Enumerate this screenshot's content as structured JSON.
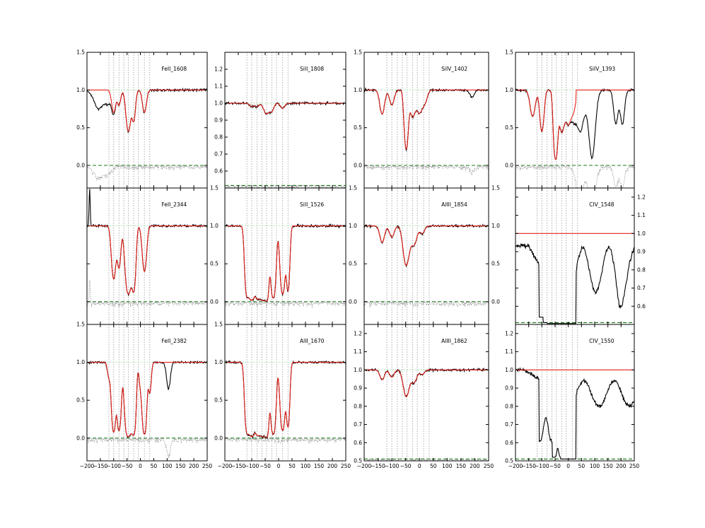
{
  "chart_data": {
    "type": "line",
    "xlim": [
      -200,
      250
    ],
    "x_ticks": [
      -200,
      -150,
      -100,
      -50,
      0,
      50,
      100,
      150,
      200,
      250
    ],
    "x_tick_labels": [
      "−200",
      "−150",
      "−100",
      "−50",
      "0",
      "50",
      "100",
      "150",
      "200",
      "250"
    ],
    "component_velocities": [
      -118,
      -100,
      -80,
      -62,
      -45,
      -25,
      -8,
      15,
      35
    ],
    "colors": {
      "flux": "#000000",
      "model": "#e8231c",
      "continuum": "#9fdb9f",
      "zero": "#1a7a1a",
      "residual": "#999999"
    },
    "panels": [
      {
        "label": "FeII_1608",
        "ylim": [
          -0.3,
          1.5
        ],
        "y_ticks": [
          0.0,
          0.5,
          1.0,
          1.5
        ],
        "y_tick_labels": [
          "0.0",
          "0.5",
          "1.0",
          "1.5"
        ],
        "axis_side": "left",
        "show_x": false,
        "zero": 0.0,
        "continuum": 1.0,
        "model_extent": [
          -130,
          60
        ],
        "lines": [
          [
            -100,
            0.3,
            7
          ],
          [
            -80,
            0.2,
            6
          ],
          [
            -45,
            0.55,
            8
          ],
          [
            -25,
            0.4,
            6
          ],
          [
            15,
            0.3,
            7
          ]
        ],
        "extra": [
          [
            -155,
            0.25,
            18
          ],
          [
            -120,
            0.15,
            10
          ]
        ]
      },
      {
        "label": "SiII_1808",
        "ylim": [
          0.5,
          1.3
        ],
        "y_ticks": [
          0.6,
          0.7,
          0.8,
          0.9,
          1.0,
          1.1,
          1.2
        ],
        "y_tick_labels": [
          "0.6",
          "0.7",
          "0.8",
          "0.9",
          "1.0",
          "1.1",
          "1.2"
        ],
        "axis_side": "left",
        "show_x": false,
        "zero": 0.515,
        "continuum": 1.0,
        "model_extent": null,
        "lines": [
          [
            -100,
            0.04,
            8
          ],
          [
            -80,
            0.04,
            7
          ],
          [
            -45,
            0.13,
            10
          ],
          [
            -25,
            0.09,
            7
          ],
          [
            15,
            0.06,
            8
          ]
        ],
        "extra": []
      },
      {
        "label": "SiIV_1402",
        "ylim": [
          -0.3,
          1.5
        ],
        "y_ticks": [
          0.0,
          0.5,
          1.0,
          1.5
        ],
        "y_tick_labels": [
          "0.0",
          "0.5",
          "1.0",
          "1.5"
        ],
        "axis_side": "left",
        "show_x": false,
        "zero": 0.0,
        "continuum": 1.0,
        "model_extent": null,
        "lines": [
          [
            -135,
            0.32,
            8
          ],
          [
            -100,
            0.2,
            8
          ],
          [
            -48,
            0.78,
            6
          ],
          [
            -25,
            0.35,
            9
          ],
          [
            0,
            0.3,
            10
          ],
          [
            20,
            0.15,
            8
          ]
        ],
        "extra": [
          [
            190,
            0.1,
            8
          ]
        ]
      },
      {
        "label": "SiIV_1393",
        "ylim": [
          -0.3,
          1.5
        ],
        "y_ticks": [
          0.0,
          0.5,
          1.0,
          1.5
        ],
        "y_tick_labels": [
          "0.0",
          "0.5",
          "1.0",
          "1.5"
        ],
        "axis_side": "left",
        "show_x": false,
        "zero": 0.0,
        "continuum": 1.0,
        "model_extent": [
          -200,
          30
        ],
        "lines": [
          [
            -135,
            0.35,
            9
          ],
          [
            -100,
            0.55,
            7
          ],
          [
            -48,
            0.92,
            6
          ],
          [
            -25,
            0.55,
            9
          ],
          [
            0,
            0.45,
            10
          ],
          [
            20,
            0.25,
            8
          ]
        ],
        "extra": [
          [
            45,
            0.55,
            15
          ],
          [
            90,
            0.9,
            12
          ],
          [
            180,
            0.45,
            8
          ],
          [
            205,
            0.45,
            8
          ]
        ]
      },
      {
        "label": "FeII_2344",
        "ylim": [
          -0.3,
          1.5
        ],
        "y_ticks": [
          0.0,
          0.5,
          1.0,
          1.5
        ],
        "y_tick_labels": [
          "0.0",
          "0.5",
          "1.0",
          "1.5"
        ],
        "axis_side": "right",
        "show_x": false,
        "zero": 0.0,
        "continuum": 1.0,
        "model_extent": null,
        "lines": [
          [
            -100,
            0.7,
            7
          ],
          [
            -80,
            0.55,
            6
          ],
          [
            -45,
            0.9,
            9
          ],
          [
            -25,
            0.85,
            6
          ],
          [
            15,
            0.6,
            7
          ]
        ],
        "extra": [
          [
            -190,
            -0.5,
            2
          ]
        ]
      },
      {
        "label": "SiII_1526",
        "ylim": [
          -0.3,
          1.5
        ],
        "y_ticks": [
          0.0,
          0.5,
          1.0,
          1.5
        ],
        "y_tick_labels": [
          "0.0",
          "0.5",
          "1.0",
          "1.5"
        ],
        "axis_side": "right",
        "show_x": false,
        "zero": 0.0,
        "continuum": 1.0,
        "model_extent": null,
        "lines": [
          [
            -118,
            0.9,
            6
          ],
          [
            -100,
            0.98,
            9
          ],
          [
            -80,
            0.9,
            6
          ],
          [
            -62,
            0.98,
            10
          ],
          [
            -45,
            0.98,
            6
          ],
          [
            -20,
            0.95,
            7
          ],
          [
            15,
            0.9,
            7
          ],
          [
            35,
            0.85,
            5
          ]
        ],
        "extra": []
      },
      {
        "label": "AlIII_1854",
        "ylim": [
          -0.3,
          1.5
        ],
        "y_ticks": [
          0.0,
          0.5,
          1.0,
          1.5
        ],
        "y_tick_labels": [
          "0.0",
          "0.5",
          "1.0",
          "1.5"
        ],
        "axis_side": "right",
        "show_x": false,
        "zero": 0.0,
        "continuum": 1.0,
        "model_extent": null,
        "lines": [
          [
            -135,
            0.22,
            8
          ],
          [
            -100,
            0.15,
            8
          ],
          [
            -48,
            0.52,
            10
          ],
          [
            -20,
            0.25,
            10
          ],
          [
            10,
            0.1,
            8
          ]
        ],
        "extra": []
      },
      {
        "label": "CIV_1548",
        "ylim": [
          0.5,
          1.25
        ],
        "y_ticks": [
          0.6,
          0.7,
          0.8,
          0.9,
          1.0,
          1.1,
          1.2
        ],
        "y_tick_labels": [
          "0.6",
          "0.7",
          "0.8",
          "0.9",
          "1.0",
          "1.1",
          "1.2"
        ],
        "axis_side": "right",
        "show_x": false,
        "zero": 0.51,
        "continuum": 1.0,
        "model_extent": null,
        "lines": [],
        "extra": []
      },
      {
        "label": "FeII_2382",
        "ylim": [
          -0.3,
          1.5
        ],
        "y_ticks": [
          0.0,
          0.5,
          1.0,
          1.5
        ],
        "y_tick_labels": [
          "0.0",
          "0.5",
          "1.0",
          "1.5"
        ],
        "axis_side": "left",
        "show_x": true,
        "zero": 0.0,
        "continuum": 1.0,
        "model_extent": null,
        "lines": [
          [
            -118,
            0.2,
            5
          ],
          [
            -100,
            0.92,
            6
          ],
          [
            -80,
            0.9,
            6
          ],
          [
            -45,
            0.98,
            9
          ],
          [
            -25,
            0.95,
            6
          ],
          [
            0,
            0.3,
            5
          ],
          [
            15,
            0.95,
            6
          ],
          [
            35,
            0.4,
            5
          ]
        ],
        "extra": [
          [
            105,
            0.35,
            7
          ]
        ]
      },
      {
        "label": "AlII_1670",
        "ylim": [
          -0.3,
          1.5
        ],
        "y_ticks": [
          0.0,
          0.5,
          1.0,
          1.5
        ],
        "y_tick_labels": [
          "0.0",
          "0.5",
          "1.0",
          "1.5"
        ],
        "axis_side": "left",
        "show_x": true,
        "zero": 0.0,
        "continuum": 1.0,
        "model_extent": null,
        "lines": [
          [
            -118,
            0.9,
            6
          ],
          [
            -100,
            0.98,
            9
          ],
          [
            -80,
            0.9,
            6
          ],
          [
            -62,
            0.98,
            10
          ],
          [
            -45,
            0.98,
            6
          ],
          [
            -20,
            0.95,
            7
          ],
          [
            15,
            0.9,
            7
          ],
          [
            35,
            0.85,
            5
          ]
        ],
        "extra": []
      },
      {
        "label": "AlIII_1862",
        "ylim": [
          0.5,
          1.25
        ],
        "y_ticks": [
          0.5,
          0.6,
          0.7,
          0.8,
          0.9,
          1.0,
          1.1,
          1.2
        ],
        "y_tick_labels": [
          "0.5",
          "0.6",
          "0.7",
          "0.8",
          "0.9",
          "1.0",
          "1.1",
          "1.2"
        ],
        "axis_side": "left",
        "show_x": true,
        "zero": 0.51,
        "continuum": 1.0,
        "model_extent": null,
        "lines": [
          [
            -135,
            0.11,
            8
          ],
          [
            -100,
            0.08,
            8
          ],
          [
            -48,
            0.3,
            10
          ],
          [
            -20,
            0.14,
            10
          ],
          [
            10,
            0.05,
            8
          ]
        ],
        "extra": []
      },
      {
        "label": "CIV_1550",
        "ylim": [
          0.5,
          1.25
        ],
        "y_ticks": [
          0.5,
          0.6,
          0.7,
          0.8,
          0.9,
          1.0,
          1.1,
          1.2
        ],
        "y_tick_labels": [
          "0.5",
          "0.6",
          "0.7",
          "0.8",
          "0.9",
          "1.0",
          "1.1",
          "1.2"
        ],
        "axis_side": "left",
        "show_x": true,
        "zero": 0.51,
        "continuum": 1.0,
        "model_extent": null,
        "lines": [],
        "extra": []
      }
    ]
  }
}
